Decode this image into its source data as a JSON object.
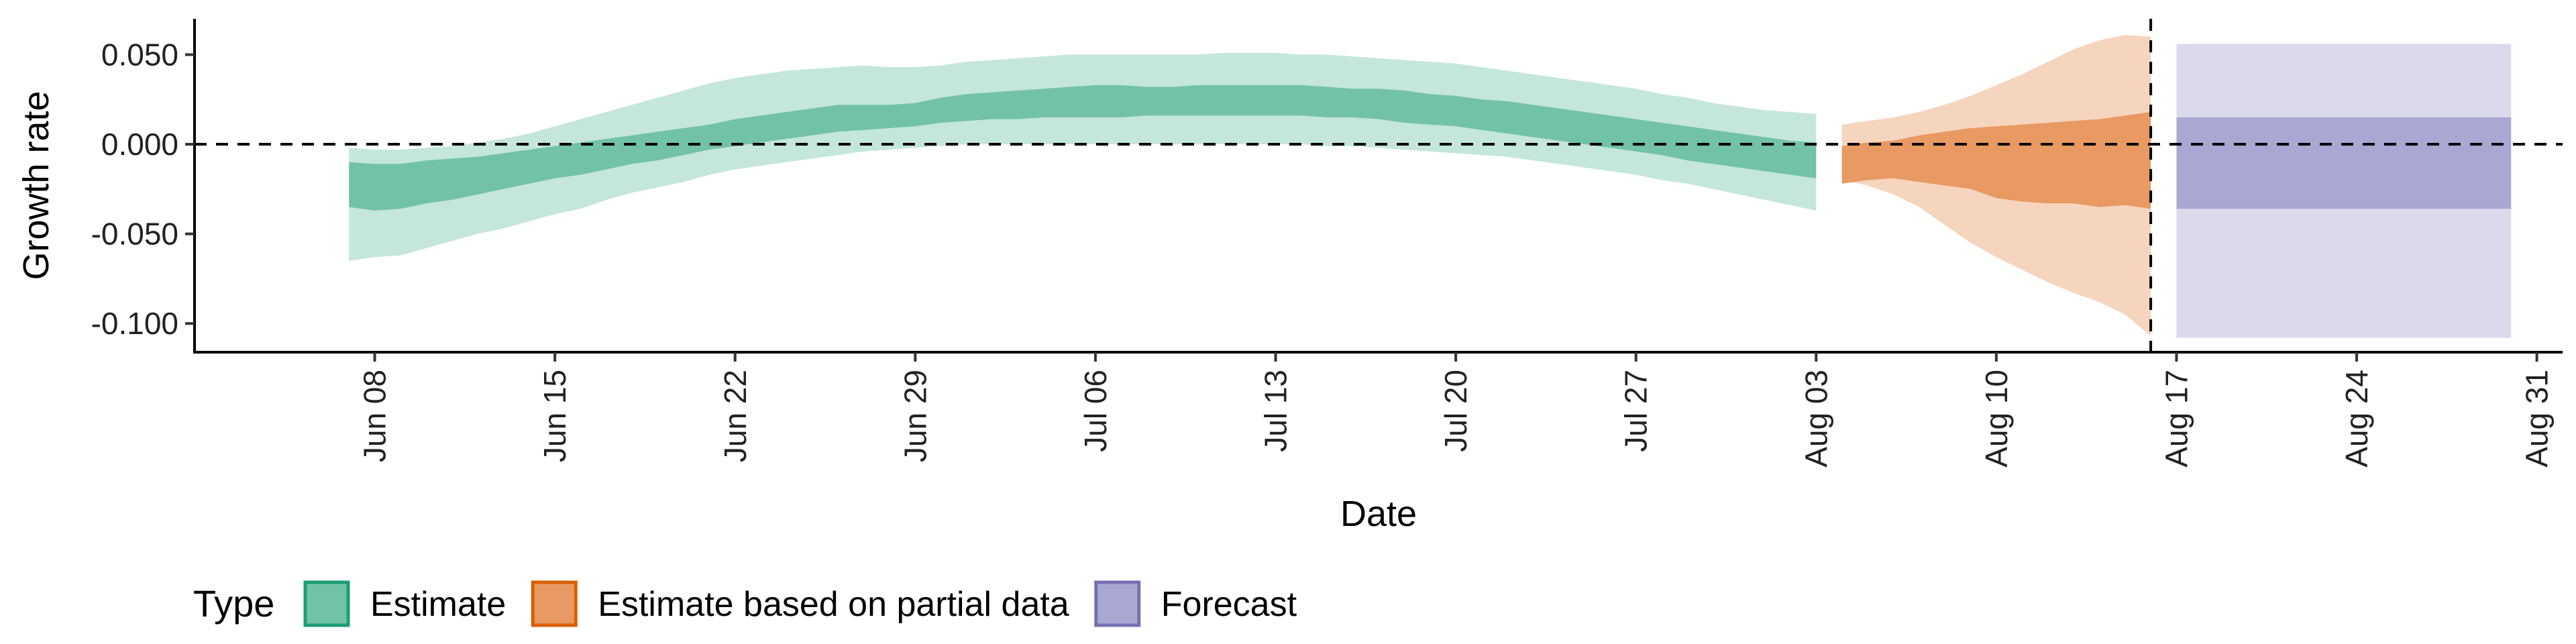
{
  "chart_data": {
    "type": "area",
    "xlabel": "Date",
    "ylabel": "Growth rate",
    "x_range": [
      "2021-06-01",
      "2021-09-01"
    ],
    "ylim": [
      -0.116,
      0.07
    ],
    "y_ticks": [
      0.05,
      0.0,
      -0.05,
      -0.1
    ],
    "y_tick_labels": [
      "0.050",
      "0.000",
      "-0.050",
      "-0.100"
    ],
    "x_ticks": [
      "2021-06-08",
      "2021-06-15",
      "2021-06-22",
      "2021-06-29",
      "2021-07-06",
      "2021-07-13",
      "2021-07-20",
      "2021-07-27",
      "2021-08-03",
      "2021-08-10",
      "2021-08-17",
      "2021-08-24",
      "2021-08-31"
    ],
    "x_tick_labels": [
      "Jun 08",
      "Jun 15",
      "Jun 22",
      "Jun 29",
      "Jul 06",
      "Jul 13",
      "Jul 20",
      "Jul 27",
      "Aug 03",
      "Aug 10",
      "Aug 17",
      "Aug 24",
      "Aug 31"
    ],
    "reference_lines": {
      "hline_y": 0,
      "vline_date": "2021-08-16"
    },
    "grid": false,
    "legend": {
      "title": "Type",
      "position": "bottom-left",
      "entries": [
        {
          "label": "Estimate",
          "fill": "#72c2a8",
          "border": "#1b9e77"
        },
        {
          "label": "Estimate based on partial data",
          "fill": "#e89a62",
          "border": "#d95f02"
        },
        {
          "label": "Forecast",
          "fill": "#aaa7d2",
          "border": "#7570b3"
        }
      ]
    },
    "series": [
      {
        "name": "Estimate",
        "colors": {
          "outer": "#c5e6db",
          "inner": "#72c2a8"
        },
        "dates": [
          "2021-06-07",
          "2021-06-08",
          "2021-06-09",
          "2021-06-10",
          "2021-06-11",
          "2021-06-12",
          "2021-06-13",
          "2021-06-14",
          "2021-06-15",
          "2021-06-16",
          "2021-06-17",
          "2021-06-18",
          "2021-06-19",
          "2021-06-20",
          "2021-06-21",
          "2021-06-22",
          "2021-06-23",
          "2021-06-24",
          "2021-06-25",
          "2021-06-26",
          "2021-06-27",
          "2021-06-28",
          "2021-06-29",
          "2021-06-30",
          "2021-07-01",
          "2021-07-02",
          "2021-07-03",
          "2021-07-04",
          "2021-07-05",
          "2021-07-06",
          "2021-07-07",
          "2021-07-08",
          "2021-07-09",
          "2021-07-10",
          "2021-07-11",
          "2021-07-12",
          "2021-07-13",
          "2021-07-14",
          "2021-07-15",
          "2021-07-16",
          "2021-07-17",
          "2021-07-18",
          "2021-07-19",
          "2021-07-20",
          "2021-07-21",
          "2021-07-22",
          "2021-07-23",
          "2021-07-24",
          "2021-07-25",
          "2021-07-26",
          "2021-07-27",
          "2021-07-28",
          "2021-07-29",
          "2021-07-30",
          "2021-07-31",
          "2021-08-01",
          "2021-08-02",
          "2021-08-03"
        ],
        "outer_lower": [
          -0.065,
          -0.063,
          -0.062,
          -0.058,
          -0.054,
          -0.05,
          -0.047,
          -0.043,
          -0.039,
          -0.036,
          -0.031,
          -0.027,
          -0.024,
          -0.021,
          -0.017,
          -0.014,
          -0.012,
          -0.01,
          -0.008,
          -0.006,
          -0.004,
          -0.003,
          -0.002,
          -0.001,
          0.0,
          0.0,
          0.0,
          0.0,
          0.0,
          0.0,
          0.0,
          0.0,
          0.0,
          0.0,
          0.0,
          0.0,
          0.0,
          0.0,
          -0.001,
          -0.001,
          -0.002,
          -0.003,
          -0.004,
          -0.005,
          -0.006,
          -0.007,
          -0.009,
          -0.011,
          -0.013,
          -0.015,
          -0.017,
          -0.02,
          -0.022,
          -0.025,
          -0.028,
          -0.031,
          -0.034,
          -0.037
        ],
        "inner_lower": [
          -0.035,
          -0.037,
          -0.036,
          -0.033,
          -0.031,
          -0.028,
          -0.025,
          -0.022,
          -0.019,
          -0.017,
          -0.014,
          -0.011,
          -0.009,
          -0.006,
          -0.003,
          -0.001,
          0.001,
          0.003,
          0.005,
          0.007,
          0.008,
          0.009,
          0.01,
          0.012,
          0.013,
          0.014,
          0.014,
          0.015,
          0.015,
          0.015,
          0.015,
          0.016,
          0.016,
          0.016,
          0.016,
          0.016,
          0.016,
          0.016,
          0.015,
          0.015,
          0.014,
          0.012,
          0.011,
          0.01,
          0.008,
          0.006,
          0.004,
          0.002,
          0.0,
          -0.002,
          -0.004,
          -0.006,
          -0.009,
          -0.011,
          -0.013,
          -0.015,
          -0.017,
          -0.019
        ],
        "inner_upper": [
          -0.01,
          -0.011,
          -0.011,
          -0.009,
          -0.008,
          -0.007,
          -0.005,
          -0.003,
          -0.001,
          0.001,
          0.003,
          0.005,
          0.007,
          0.009,
          0.011,
          0.014,
          0.016,
          0.018,
          0.02,
          0.022,
          0.022,
          0.022,
          0.023,
          0.026,
          0.028,
          0.029,
          0.03,
          0.031,
          0.032,
          0.033,
          0.033,
          0.032,
          0.032,
          0.033,
          0.033,
          0.033,
          0.033,
          0.033,
          0.032,
          0.031,
          0.031,
          0.03,
          0.028,
          0.027,
          0.025,
          0.024,
          0.022,
          0.02,
          0.018,
          0.016,
          0.014,
          0.012,
          0.01,
          0.008,
          0.006,
          0.004,
          0.002,
          0.001
        ],
        "outer_upper": [
          -0.002,
          -0.003,
          -0.003,
          -0.002,
          -0.001,
          0.001,
          0.003,
          0.006,
          0.01,
          0.014,
          0.018,
          0.022,
          0.026,
          0.03,
          0.034,
          0.037,
          0.039,
          0.041,
          0.042,
          0.043,
          0.044,
          0.043,
          0.043,
          0.044,
          0.046,
          0.047,
          0.048,
          0.049,
          0.05,
          0.05,
          0.05,
          0.05,
          0.05,
          0.05,
          0.051,
          0.051,
          0.051,
          0.05,
          0.05,
          0.049,
          0.048,
          0.047,
          0.046,
          0.045,
          0.043,
          0.041,
          0.039,
          0.037,
          0.035,
          0.033,
          0.031,
          0.028,
          0.026,
          0.023,
          0.021,
          0.019,
          0.018,
          0.017
        ]
      },
      {
        "name": "Estimate based on partial data",
        "colors": {
          "outer": "#f6d5bf",
          "inner": "#e89a62"
        },
        "dates": [
          "2021-08-04",
          "2021-08-05",
          "2021-08-06",
          "2021-08-07",
          "2021-08-08",
          "2021-08-09",
          "2021-08-10",
          "2021-08-11",
          "2021-08-12",
          "2021-08-13",
          "2021-08-14",
          "2021-08-15",
          "2021-08-16"
        ],
        "outer_lower": [
          -0.02,
          -0.023,
          -0.028,
          -0.035,
          -0.045,
          -0.055,
          -0.063,
          -0.07,
          -0.077,
          -0.083,
          -0.088,
          -0.095,
          -0.107
        ],
        "inner_lower": [
          -0.022,
          -0.02,
          -0.019,
          -0.021,
          -0.023,
          -0.025,
          -0.03,
          -0.032,
          -0.033,
          -0.033,
          -0.035,
          -0.034,
          -0.036
        ],
        "inner_upper": [
          -0.001,
          0.001,
          0.002,
          0.005,
          0.007,
          0.009,
          0.01,
          0.011,
          0.012,
          0.013,
          0.014,
          0.016,
          0.018
        ],
        "outer_upper": [
          0.011,
          0.013,
          0.015,
          0.018,
          0.022,
          0.027,
          0.033,
          0.039,
          0.046,
          0.053,
          0.058,
          0.061,
          0.06
        ]
      },
      {
        "name": "Forecast",
        "colors": {
          "outer": "#dbdaed",
          "inner": "#aaa7d2"
        },
        "dates": [
          "2021-08-17",
          "2021-08-30"
        ],
        "outer_lower": [
          -0.108,
          -0.108
        ],
        "inner_lower": [
          -0.036,
          -0.036
        ],
        "inner_upper": [
          0.015,
          0.015
        ],
        "outer_upper": [
          0.056,
          0.056
        ]
      }
    ]
  }
}
